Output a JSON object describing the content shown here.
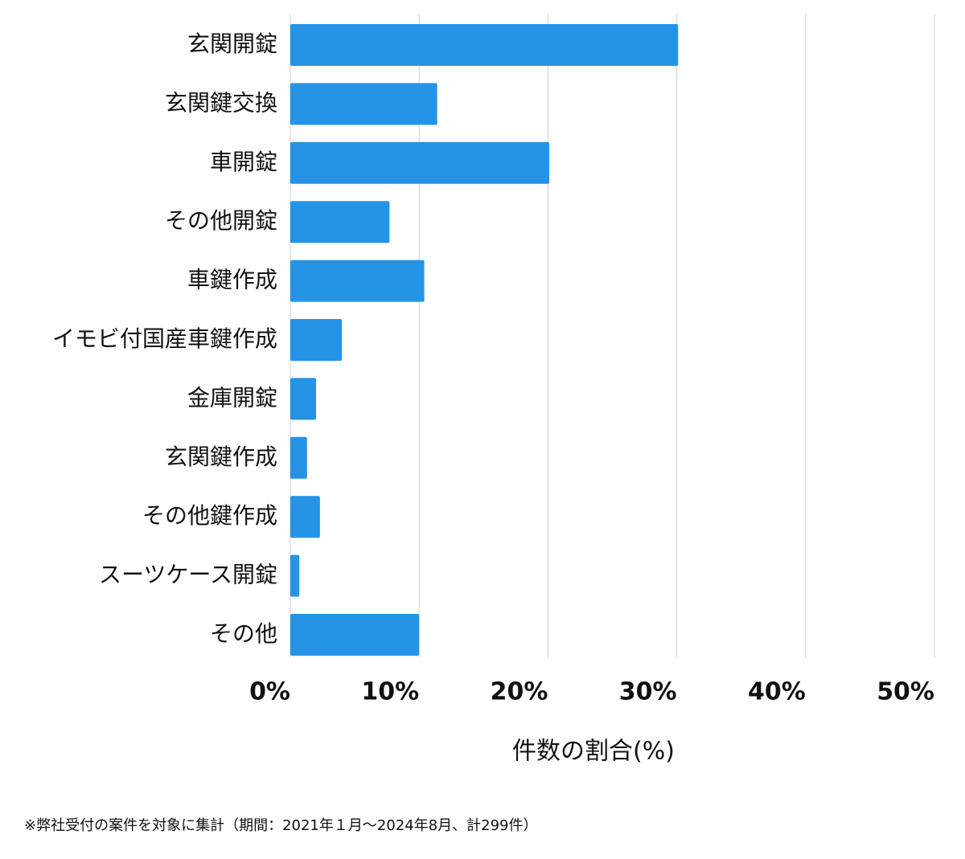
{
  "chart_data": {
    "type": "bar",
    "orientation": "horizontal",
    "categories": [
      "玄関開錠",
      "玄関鍵交換",
      "車開錠",
      "その他開錠",
      "車鍵作成",
      "イモビ付国産車鍵作成",
      "金庫開錠",
      "玄関鍵作成",
      "その他鍵作成",
      "スーツケース開錠",
      "その他"
    ],
    "values": [
      30.1,
      11.4,
      20.1,
      7.7,
      10.4,
      4.0,
      2.0,
      1.3,
      2.3,
      0.7,
      10.0
    ],
    "color": "#2594e6",
    "xlabel": "件数の割合(%)",
    "xlim": [
      0,
      50
    ],
    "xticks": [
      {
        "value": 0,
        "label": "0%"
      },
      {
        "value": 10,
        "label": "10%"
      },
      {
        "value": 20,
        "label": "20%"
      },
      {
        "value": 30,
        "label": "30%"
      },
      {
        "value": 40,
        "label": "40%"
      },
      {
        "value": 50,
        "label": "50%"
      }
    ],
    "grid": true,
    "footnote": "※弊社受付の案件を対象に集計（期間：2021年１月～2024年8月、計299件）"
  }
}
